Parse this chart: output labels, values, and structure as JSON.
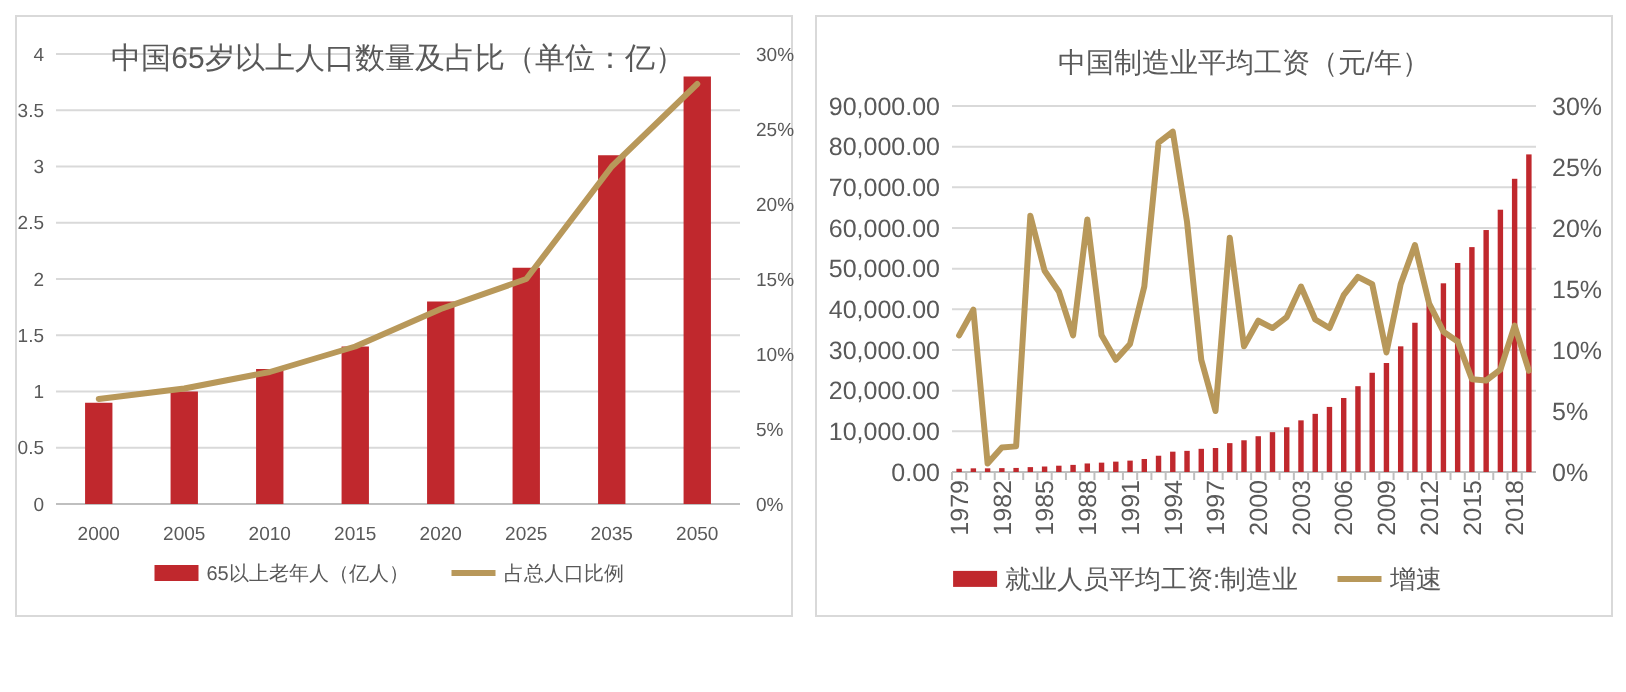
{
  "chart_data": [
    {
      "type": "bar",
      "title": "中国65岁以上人口数量及占比（单位：亿）",
      "categories": [
        "2000",
        "2005",
        "2010",
        "2015",
        "2020",
        "2025",
        "2035",
        "2050"
      ],
      "series": [
        {
          "name": "65以上老年人（亿人）",
          "color": "#c0282d",
          "values": [
            0.9,
            1.0,
            1.2,
            1.4,
            1.8,
            2.1,
            3.1,
            3.8
          ]
        },
        {
          "name": "占总人口比例",
          "type": "line",
          "axis": "y2",
          "color": "#b8985a",
          "values": [
            7,
            7.7,
            8.8,
            10.5,
            13,
            15,
            22.5,
            28
          ]
        }
      ],
      "ylim": [
        0,
        4
      ],
      "yticks": [
        0,
        0.5,
        1,
        1.5,
        2,
        2.5,
        3,
        3.5,
        4
      ],
      "y2lim": [
        0,
        30
      ],
      "y2ticks": [
        {
          "value": 0,
          "label": "0%"
        },
        {
          "value": 5,
          "label": "5%"
        },
        {
          "value": 10,
          "label": "10%"
        },
        {
          "value": 15,
          "label": "15%"
        },
        {
          "value": 20,
          "label": "20%"
        },
        {
          "value": 25,
          "label": "25%"
        },
        {
          "value": 30,
          "label": "30%"
        }
      ],
      "grid": "y",
      "legend": "bottom"
    },
    {
      "type": "bar",
      "title": "中国制造业平均工资（元/年）",
      "categories": [
        "1979",
        null,
        null,
        "1982",
        null,
        null,
        "1985",
        null,
        null,
        "1988",
        null,
        null,
        "1991",
        null,
        null,
        "1994",
        null,
        null,
        "1997",
        null,
        null,
        "2000",
        null,
        null,
        "2003",
        null,
        null,
        "2006",
        null,
        null,
        "2009",
        null,
        null,
        "2012",
        null,
        null,
        "2015",
        null,
        null,
        "2018",
        null
      ],
      "series": [
        {
          "name": "就业人员平均工资:制造业",
          "color": "#c0282d",
          "values": [
            800,
            900,
            900,
            950,
            1000,
            1200,
            1350,
            1550,
            1750,
            2100,
            2300,
            2550,
            2800,
            3200,
            4000,
            5000,
            5200,
            5700,
            5900,
            7100,
            7800,
            8800,
            9800,
            11000,
            12700,
            14300,
            16000,
            18200,
            21100,
            24400,
            26800,
            30900,
            36700,
            41600,
            46400,
            51400,
            55300,
            59500,
            64500,
            72100,
            78100
          ]
        },
        {
          "name": "增速",
          "type": "line",
          "axis": "y2",
          "color": "#b8985a",
          "values": [
            11.2,
            13.3,
            0.7,
            2.0,
            2.1,
            21,
            16.5,
            14.8,
            11.2,
            20.7,
            11.2,
            9.2,
            10.5,
            15.2,
            27,
            27.9,
            20.5,
            9.2,
            5.0,
            19.2,
            10.3,
            12.4,
            11.8,
            12.7,
            15.2,
            12.5,
            11.8,
            14.5,
            16.0,
            15.4,
            9.8,
            15.4,
            18.6,
            13.8,
            11.5,
            10.7,
            7.6,
            7.5,
            8.4,
            12.0,
            8.3
          ]
        }
      ],
      "ylim": [
        0,
        90000
      ],
      "yticks": [
        {
          "value": 0,
          "label": "0.00"
        },
        {
          "value": 10000,
          "label": "10,000.00"
        },
        {
          "value": 20000,
          "label": "20,000.00"
        },
        {
          "value": 30000,
          "label": "30,000.00"
        },
        {
          "value": 40000,
          "label": "40,000.00"
        },
        {
          "value": 50000,
          "label": "50,000.00"
        },
        {
          "value": 60000,
          "label": "60,000.00"
        },
        {
          "value": 70000,
          "label": "70,000.00"
        },
        {
          "value": 80000,
          "label": "80,000.00"
        },
        {
          "value": 90000,
          "label": "90,000.00"
        }
      ],
      "y2lim": [
        0,
        30
      ],
      "y2ticks": [
        {
          "value": 0,
          "label": "0%"
        },
        {
          "value": 5,
          "label": "5%"
        },
        {
          "value": 10,
          "label": "10%"
        },
        {
          "value": 15,
          "label": "15%"
        },
        {
          "value": 20,
          "label": "20%"
        },
        {
          "value": 25,
          "label": "25%"
        },
        {
          "value": 30,
          "label": "30%"
        }
      ],
      "grid": "y",
      "legend": "bottom"
    }
  ]
}
